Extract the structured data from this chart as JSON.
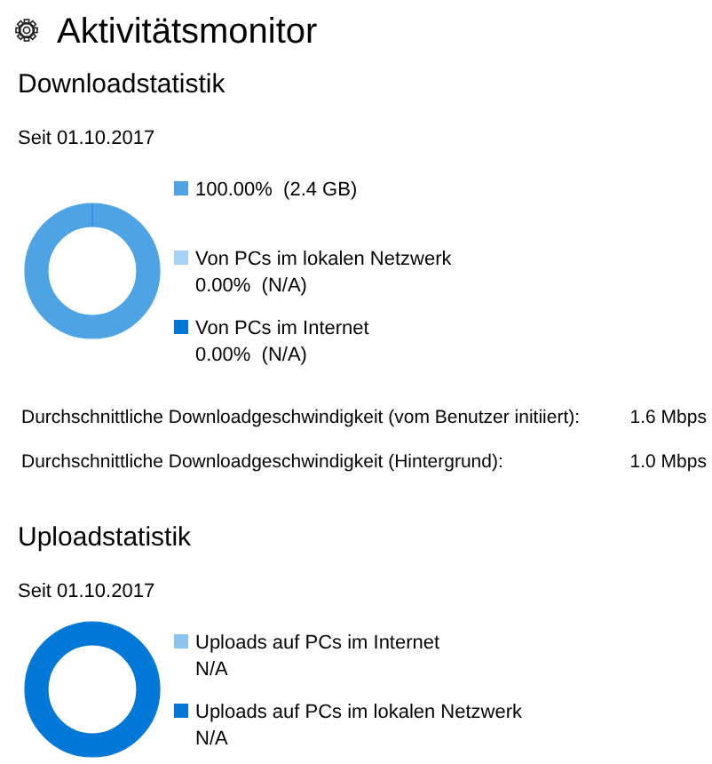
{
  "chart_data": [
    {
      "type": "other",
      "title": "Aktivitätsmonitor"
    },
    {
      "type": "donut",
      "title": "Downloadstatistik",
      "subtitle": "Seit 01.10.2017",
      "categories": [
        null,
        "Von PCs im lokalen Netzwerk",
        "Von PCs im Internet"
      ],
      "values": [
        100,
        0,
        0
      ],
      "colors": [
        "#4ea3e5",
        "#a8d2f4",
        "#0078d7"
      ],
      "value_labels": [
        "100.00%  (2.4 GB)",
        "0.00%  (N/A)",
        "0.00%  (N/A)"
      ],
      "legend": "right",
      "annotations": [
        "Durchschnittliche Downloadgeschwindigkeit (vom Benutzer initiiert):",
        "1.6 Mbps",
        "Durchschnittliche Downloadgeschwindigkeit (Hintergrund):",
        "1.0 Mbps"
      ]
    },
    {
      "type": "donut",
      "title": "Uploadstatistik",
      "subtitle": "Seit 01.10.2017",
      "categories": [
        "Uploads auf PCs im Internet",
        "Uploads auf PCs im lokalen Netzwerk"
      ],
      "values": [
        0,
        100
      ],
      "colors": [
        "#8dc4ef",
        "#0078d7"
      ],
      "value_labels": [
        "N/A",
        "N/A"
      ],
      "legend": "right"
    }
  ]
}
